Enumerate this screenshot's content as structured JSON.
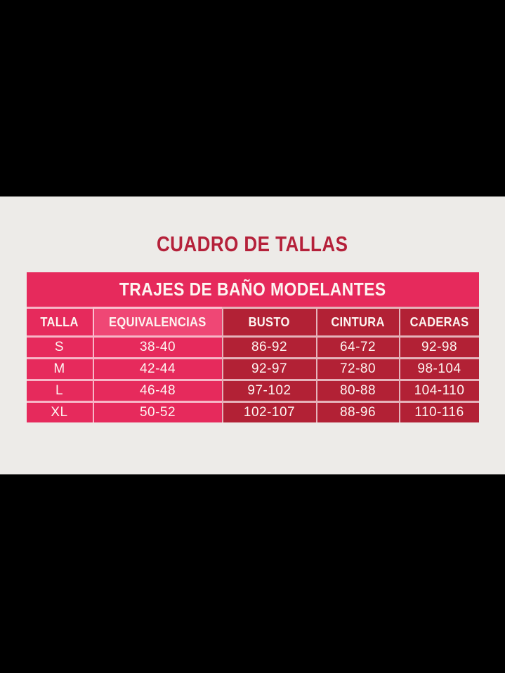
{
  "chart_data": {
    "type": "table",
    "title": "CUADRO DE TALLAS",
    "subtitle": "TRAJES DE BAÑO MODELANTES",
    "columns": [
      "TALLA",
      "EQUIVALENCIAS",
      "BUSTO",
      "CINTURA",
      "CADERAS"
    ],
    "rows": [
      [
        "S",
        "38-40",
        "86-92",
        "64-72",
        "92-98"
      ],
      [
        "M",
        "42-44",
        "92-97",
        "72-80",
        "98-104"
      ],
      [
        "L",
        "46-48",
        "97-102",
        "80-88",
        "104-110"
      ],
      [
        "XL",
        "50-52",
        "102-107",
        "88-96",
        "110-116"
      ]
    ],
    "layout_hints": {
      "header_banner_full_width": true,
      "pink_columns": [
        "TALLA",
        "EQUIVALENCIAS"
      ],
      "dark_red_columns": [
        "BUSTO",
        "CINTURA",
        "CADERAS"
      ],
      "letterboxed": true
    }
  },
  "colors": {
    "letterbox": "#000000",
    "canvas_bg": "#edebe8",
    "title_red": "#b5213a",
    "pink": "#e62a5c",
    "pink_light": "#ef4775",
    "dark_red": "#b22135",
    "separator": "#ffffffa8",
    "text_white": "#fdf6f2"
  }
}
